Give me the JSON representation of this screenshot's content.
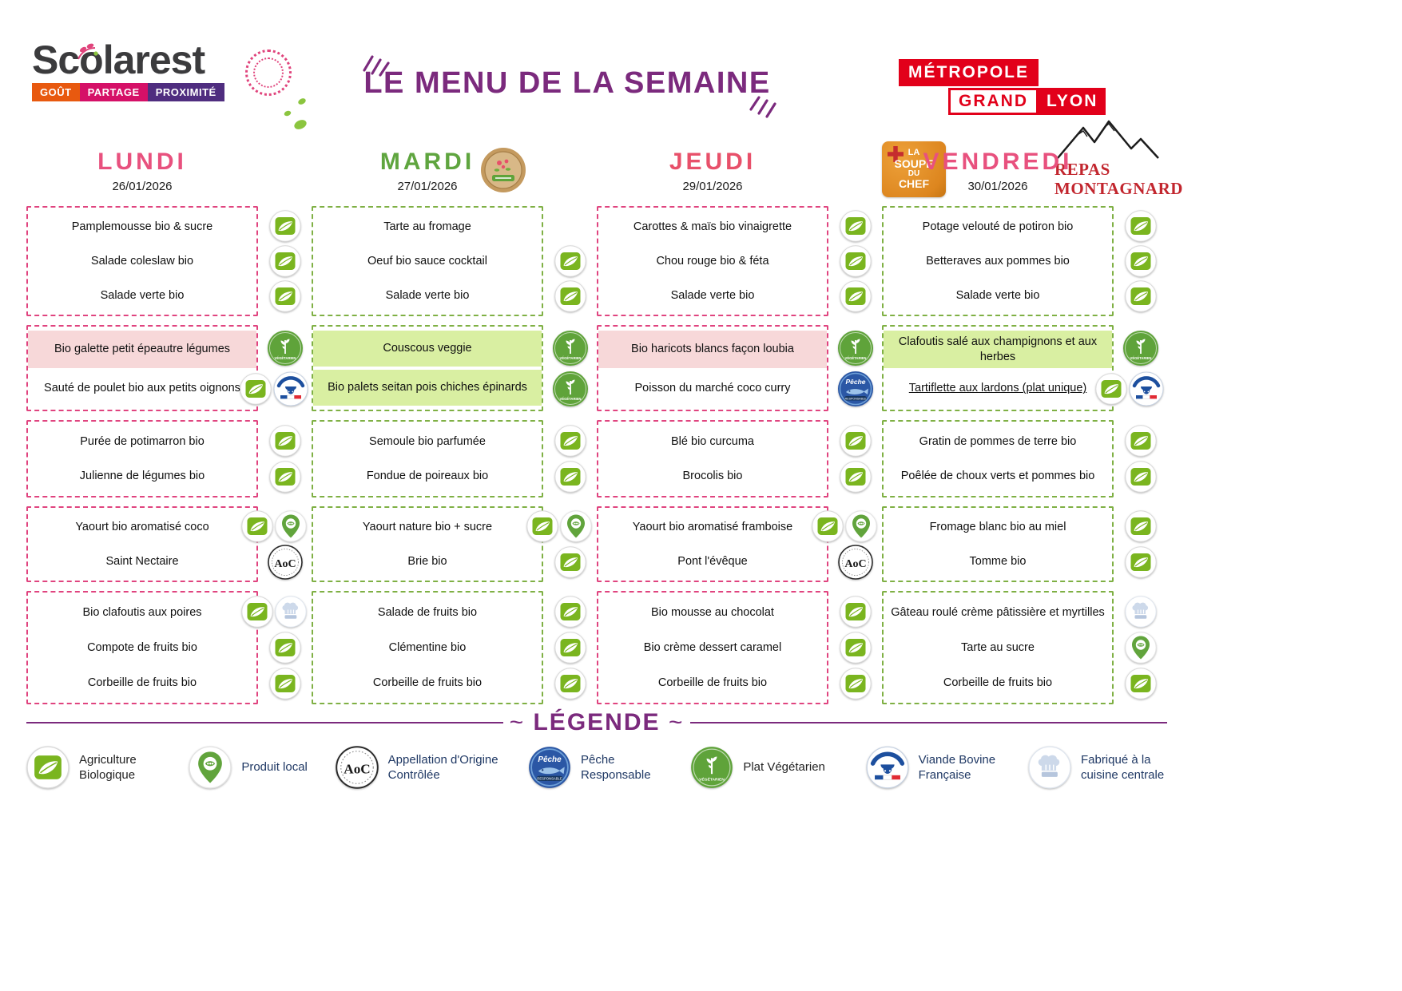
{
  "colors": {
    "title-purple": "#7b2a7d",
    "day-pink": "#e8517e",
    "day-red": "#e8506a",
    "day-green": "#5fa53f",
    "border-pink": "#e0447f",
    "border-green": "#7fb044",
    "hl-pink": "#f7d8d9",
    "hl-green": "#d9efa2",
    "bio-green": "#7ab51f",
    "veg-green": "#5fa33a",
    "peche-blue": "#2b57a5",
    "metropole-red": "#e2001a",
    "montagnard-red": "#c2262e",
    "brand-orange": "#e8590f",
    "brand-magenta": "#d51067",
    "brand-purple": "#4f2d7f",
    "soupe-orange": "#dd861f",
    "navy": "#1f3864"
  },
  "header": {
    "brand": {
      "name": "Scolarest",
      "tagline": [
        "GOÛT",
        "PARTAGE",
        "PROXIMITÉ"
      ]
    },
    "title": "LE MENU DE LA SEMAINE",
    "metropole": {
      "top": "MÉTROPOLE",
      "grand": "GRAND",
      "lyon": "LYON"
    },
    "soupe_badge": [
      "LA",
      "SOUPE",
      "DU",
      "CHEF"
    ],
    "montagnard": [
      "REPAS",
      "MONTAGNARD"
    ]
  },
  "icon_names": {
    "bio": "Agriculture Biologique",
    "local": "Produit local",
    "aoc": "Appellation d'Origine Contrôlée",
    "peche": "Pêche Responsable",
    "veg": "Plat Végétarien",
    "vbf": "Viande Bovine Française",
    "hat": "Fabriqué à la cuisine centrale"
  },
  "days": [
    {
      "name": "LUNDI",
      "date": "26/01/2026",
      "theme": "pink",
      "name_color": "#e8517e",
      "sections": [
        {
          "items": [
            {
              "label": "Pamplemousse bio & sucre",
              "icons": [
                "bio"
              ]
            },
            {
              "label": "Salade coleslaw bio",
              "icons": [
                "bio"
              ]
            },
            {
              "label": "Salade verte bio",
              "icons": [
                "bio"
              ]
            }
          ]
        },
        {
          "items": [
            {
              "label": "Bio galette petit épeautre légumes",
              "icons": [
                "veg"
              ],
              "highlight": "pink"
            },
            {
              "label": "Sauté de poulet bio aux petits oignons",
              "icons": [
                "bio",
                "vbf"
              ]
            }
          ]
        },
        {
          "items": [
            {
              "label": "Purée de potimarron bio",
              "icons": [
                "bio"
              ]
            },
            {
              "label": "Julienne de légumes bio",
              "icons": [
                "bio"
              ]
            }
          ]
        },
        {
          "items": [
            {
              "label": "Yaourt bio aromatisé coco",
              "icons": [
                "bio",
                "local"
              ]
            },
            {
              "label": "Saint Nectaire",
              "icons": [
                "aoc"
              ]
            }
          ]
        },
        {
          "items": [
            {
              "label": "Bio clafoutis aux poires",
              "icons": [
                "bio",
                "hat"
              ]
            },
            {
              "label": "Compote de fruits bio",
              "icons": [
                "bio"
              ]
            },
            {
              "label": "Corbeille de fruits bio",
              "icons": [
                "bio"
              ]
            }
          ]
        }
      ]
    },
    {
      "name": "MARDI",
      "date": "27/01/2026",
      "theme": "green",
      "name_color": "#5fa53f",
      "sections": [
        {
          "items": [
            {
              "label": "Tarte au fromage",
              "icons": []
            },
            {
              "label": "Oeuf bio sauce cocktail",
              "icons": [
                "bio"
              ]
            },
            {
              "label": "Salade verte bio",
              "icons": [
                "bio"
              ]
            }
          ]
        },
        {
          "items": [
            {
              "label": "Couscous veggie",
              "icons": [
                "veg"
              ],
              "highlight": "green"
            },
            {
              "label": "Bio palets seitan pois chiches épinards",
              "icons": [
                "veg"
              ],
              "highlight": "green"
            }
          ]
        },
        {
          "items": [
            {
              "label": "Semoule bio parfumée",
              "icons": [
                "bio"
              ]
            },
            {
              "label": "Fondue de poireaux bio",
              "icons": [
                "bio"
              ]
            }
          ]
        },
        {
          "items": [
            {
              "label": "Yaourt nature bio + sucre",
              "icons": [
                "bio",
                "local"
              ]
            },
            {
              "label": "Brie bio",
              "icons": [
                "bio"
              ]
            }
          ]
        },
        {
          "items": [
            {
              "label": "Salade de fruits bio",
              "icons": [
                "bio"
              ]
            },
            {
              "label": "Clémentine bio",
              "icons": [
                "bio"
              ]
            },
            {
              "label": "Corbeille de fruits bio",
              "icons": [
                "bio"
              ]
            }
          ]
        }
      ]
    },
    {
      "name": "JEUDI",
      "date": "29/01/2026",
      "theme": "pink",
      "name_color": "#e8506a",
      "sections": [
        {
          "items": [
            {
              "label": "Carottes & maïs bio vinaigrette",
              "icons": [
                "bio"
              ]
            },
            {
              "label": "Chou rouge bio & féta",
              "icons": [
                "bio"
              ]
            },
            {
              "label": "Salade verte bio",
              "icons": [
                "bio"
              ]
            }
          ]
        },
        {
          "items": [
            {
              "label": "Bio haricots blancs façon loubia",
              "icons": [
                "veg"
              ],
              "highlight": "pink"
            },
            {
              "label": "Poisson du marché coco curry",
              "icons": [
                "peche"
              ]
            }
          ]
        },
        {
          "items": [
            {
              "label": "Blé bio curcuma",
              "icons": [
                "bio"
              ]
            },
            {
              "label": "Brocolis bio",
              "icons": [
                "bio"
              ]
            }
          ]
        },
        {
          "items": [
            {
              "label": "Yaourt bio aromatisé framboise",
              "icons": [
                "bio",
                "local"
              ]
            },
            {
              "label": "Pont l'évêque",
              "icons": [
                "aoc"
              ]
            }
          ]
        },
        {
          "items": [
            {
              "label": "Bio mousse au chocolat",
              "icons": [
                "bio"
              ]
            },
            {
              "label": "Bio crème dessert caramel",
              "icons": [
                "bio"
              ]
            },
            {
              "label": "Corbeille de fruits bio",
              "icons": [
                "bio"
              ]
            }
          ]
        }
      ]
    },
    {
      "name": "VENDREDI",
      "date": "30/01/2026",
      "theme": "green",
      "name_color": "#e8517e",
      "sections": [
        {
          "items": [
            {
              "label": "Potage velouté de potiron bio",
              "icons": [
                "bio"
              ]
            },
            {
              "label": "Betteraves aux pommes bio",
              "icons": [
                "bio"
              ]
            },
            {
              "label": "Salade verte bio",
              "icons": [
                "bio"
              ]
            }
          ]
        },
        {
          "items": [
            {
              "label": "Clafoutis salé aux champignons et aux herbes",
              "icons": [
                "veg"
              ],
              "highlight": "green"
            },
            {
              "label": "Tartiflette aux lardons (plat unique)",
              "icons": [
                "bio",
                "vbf"
              ],
              "underline": true
            }
          ]
        },
        {
          "items": [
            {
              "label": "Gratin de pommes de terre bio",
              "icons": [
                "bio"
              ]
            },
            {
              "label": "Poêlée de choux verts et pommes bio",
              "icons": [
                "bio"
              ]
            }
          ]
        },
        {
          "items": [
            {
              "label": "Fromage blanc bio au miel",
              "icons": [
                "bio"
              ]
            },
            {
              "label": "Tomme bio",
              "icons": [
                "bio"
              ]
            }
          ]
        },
        {
          "items": [
            {
              "label": "Gâteau roulé crème pâtissière et myrtilles",
              "icons": [
                "hat"
              ]
            },
            {
              "label": "Tarte au sucre",
              "icons": [
                "local"
              ]
            },
            {
              "label": "Corbeille de fruits bio",
              "icons": [
                "bio"
              ]
            }
          ]
        }
      ]
    }
  ],
  "legend": {
    "title": "LÉGENDE",
    "items": [
      {
        "icon": "bio",
        "label": "Agriculture Biologique",
        "color": "#222222"
      },
      {
        "icon": "local",
        "label": "Produit local",
        "color": "#1f3864"
      },
      {
        "icon": "aoc",
        "label": "Appellation d'Origine Contrôlée",
        "color": "#1f3864"
      },
      {
        "icon": "peche",
        "label": "Pêche Responsable",
        "color": "#1f3864"
      },
      {
        "icon": "veg",
        "label": "Plat Végétarien",
        "color": "#222222"
      },
      {
        "icon": "vbf",
        "label": "Viande Bovine Française",
        "color": "#1f3864"
      },
      {
        "icon": "hat",
        "label": "Fabriqué à la cuisine centrale",
        "color": "#1f3864"
      }
    ]
  }
}
